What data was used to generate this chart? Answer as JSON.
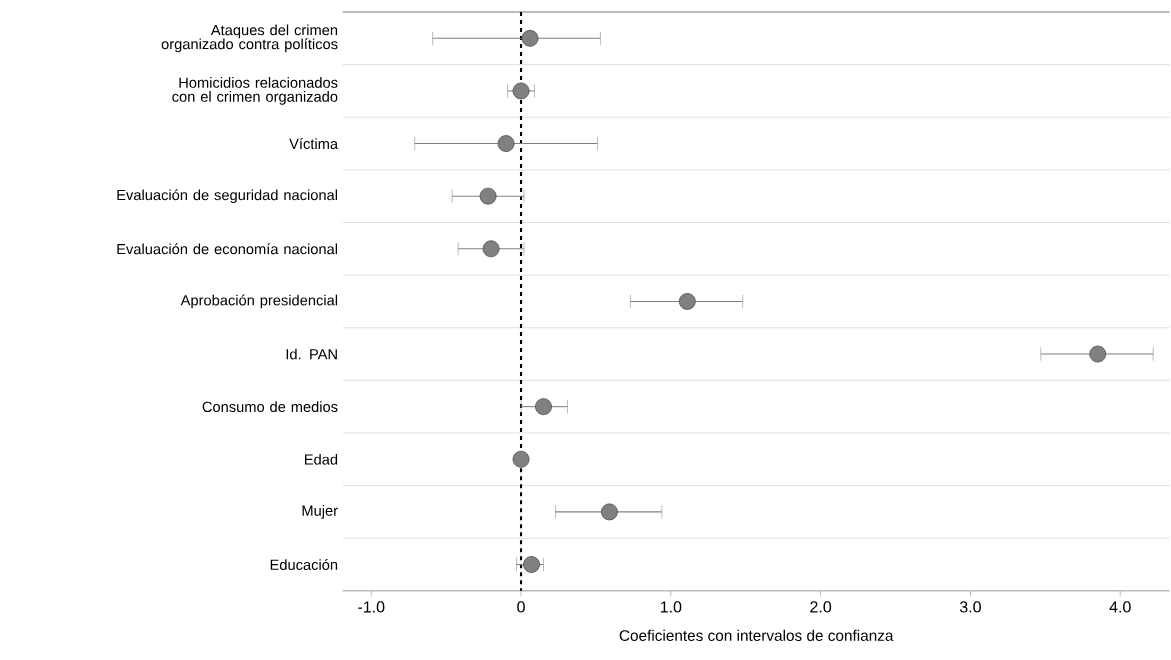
{
  "chart_data": {
    "type": "scatter",
    "orientation": "horizontal",
    "categories": [
      "Ataques del crimen organizado contra políticos",
      "Homicidios relacionados con el crimen organizado",
      "Víctima",
      "Evaluación de seguridad nacional",
      "Evaluación de economía nacional",
      "Aprobación presidencial",
      "Id. PAN",
      "Consumo de medios",
      "Edad",
      "Mujer",
      "Educación"
    ],
    "values": [
      0.06,
      0.0,
      -0.1,
      -0.22,
      -0.2,
      1.11,
      3.85,
      0.15,
      0.0,
      0.59,
      0.07
    ],
    "errors": [
      [
        -0.59,
        0.53
      ],
      [
        -0.09,
        0.09
      ],
      [
        -0.71,
        0.51
      ],
      [
        -0.46,
        0.02
      ],
      [
        -0.42,
        0.02
      ],
      [
        0.73,
        1.48
      ],
      [
        3.47,
        4.22
      ],
      [
        0.0,
        0.31
      ],
      null,
      [
        0.23,
        0.94
      ],
      [
        -0.03,
        0.15
      ]
    ],
    "color": "#808080",
    "marker": "circle",
    "grid": "y",
    "xlim": [
      -1.19,
      4.33
    ],
    "xticks": [
      {
        "value": -1,
        "label": "-1.0"
      },
      {
        "value": 0,
        "label": "0"
      },
      {
        "value": 1,
        "label": "1.0"
      },
      {
        "value": 2,
        "label": "2.0"
      },
      {
        "value": 3,
        "label": "3.0"
      },
      {
        "value": 4,
        "label": "4.0"
      }
    ],
    "xlabel": "Coeficientes con intervalos de confianza",
    "ref_lines": [
      {
        "axis": "x",
        "value": 0,
        "line_style": "dashed",
        "color": "#000000"
      }
    ]
  }
}
